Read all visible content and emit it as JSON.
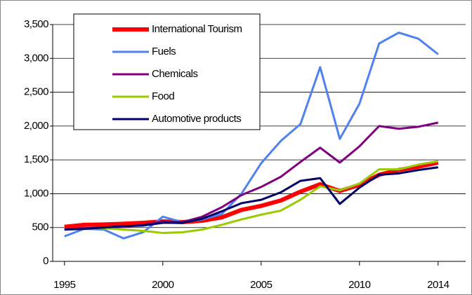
{
  "chart_data": {
    "type": "line",
    "x": [
      1995,
      1996,
      1997,
      1998,
      1999,
      2000,
      2001,
      2002,
      2003,
      2004,
      2005,
      2006,
      2007,
      2008,
      2009,
      2010,
      2011,
      2012,
      2013,
      2014
    ],
    "series": [
      {
        "name": "International Tourism",
        "color": "#ff0000",
        "width": 6,
        "values": [
          510,
          540,
          545,
          555,
          570,
          590,
          580,
          600,
          650,
          760,
          820,
          900,
          1030,
          1140,
          1040,
          1130,
          1280,
          1350,
          1400,
          1460
        ]
      },
      {
        "name": "Fuels",
        "color": "#4f81f0",
        "width": 3,
        "values": [
          370,
          480,
          470,
          340,
          430,
          660,
          580,
          620,
          700,
          1000,
          1450,
          1780,
          2030,
          2870,
          1810,
          2330,
          3220,
          3380,
          3290,
          3060
        ]
      },
      {
        "name": "Chemicals",
        "color": "#800080",
        "width": 3,
        "values": [
          470,
          490,
          500,
          510,
          540,
          590,
          580,
          660,
          800,
          980,
          1100,
          1250,
          1470,
          1680,
          1460,
          1700,
          2000,
          1960,
          1990,
          2050
        ]
      },
      {
        "name": "Food",
        "color": "#99cc00",
        "width": 3,
        "values": [
          470,
          480,
          490,
          470,
          450,
          420,
          430,
          470,
          540,
          620,
          690,
          750,
          910,
          1110,
          1050,
          1150,
          1360,
          1360,
          1430,
          1480
        ]
      },
      {
        "name": "Automotive products",
        "color": "#000066",
        "width": 3,
        "values": [
          470,
          480,
          500,
          520,
          530,
          570,
          570,
          630,
          740,
          860,
          910,
          1020,
          1190,
          1230,
          850,
          1090,
          1280,
          1300,
          1350,
          1390
        ]
      }
    ],
    "xlim": [
      1994.4,
      2015.4
    ],
    "xticks": [
      1995,
      2000,
      2005,
      2010,
      2014
    ],
    "ylim": [
      0,
      3500
    ],
    "yticks": [
      0,
      {
        "value": 500,
        "label": "500"
      },
      {
        "value": 1000,
        "label": "1,000"
      },
      {
        "value": 1500,
        "label": "1,500"
      },
      {
        "value": 2000,
        "label": "2,000"
      },
      {
        "value": 2500,
        "label": "2,500"
      },
      {
        "value": 3000,
        "label": "3,000"
      },
      {
        "value": 3500,
        "label": "3,500"
      }
    ],
    "grid": true,
    "legend": "top-left"
  }
}
